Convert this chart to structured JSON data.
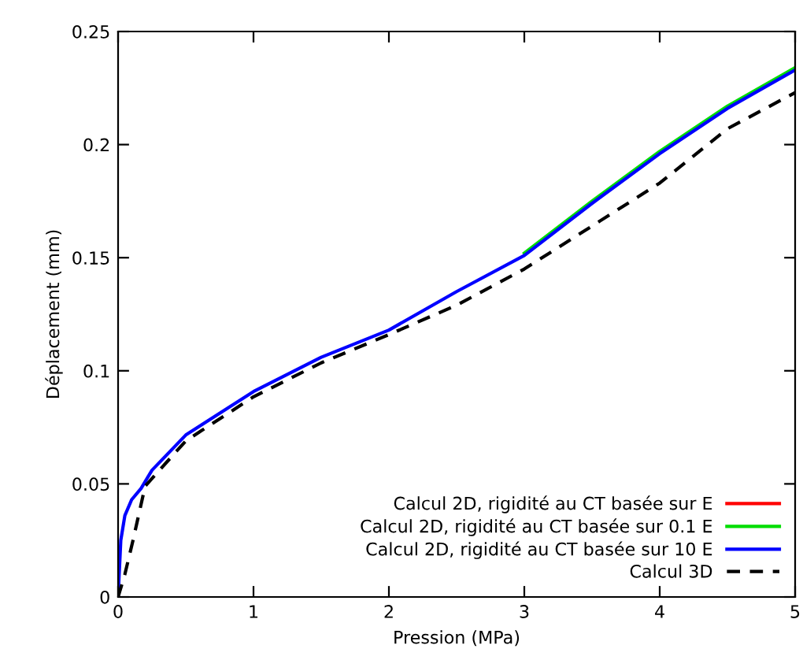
{
  "chart_data": {
    "type": "line",
    "xlabel": "Pression (MPa)",
    "ylabel": "Déplacement (mm)",
    "xlim": [
      0,
      5
    ],
    "ylim": [
      0,
      0.25
    ],
    "xticks": [
      0,
      1,
      2,
      3,
      4,
      5
    ],
    "yticks": [
      0,
      0.05,
      0.1,
      0.15,
      0.2,
      0.25
    ],
    "grid": false,
    "legend": "bottom right",
    "marker": "none",
    "series": [
      {
        "name": "Calcul 2D, rigidité au CT basée sur E",
        "color": "#ff0000",
        "line_style": "solid"
      },
      {
        "name": "Calcul 2D, rigidité au CT basée sur 0.1 E",
        "color": "#00dd00",
        "line_style": "solid",
        "x": [
          3,
          3.5,
          4,
          4.5,
          5
        ],
        "values": [
          0.152,
          0.175,
          0.197,
          0.217,
          0.234
        ]
      },
      {
        "name": "Calcul 2D, rigidité au CT basée sur 10 E",
        "color": "#0000ff",
        "line_style": "solid",
        "x": [
          0,
          0.02,
          0.05,
          0.1,
          0.17,
          0.25,
          0.5,
          1,
          1.5,
          2,
          2.5,
          3,
          3.5,
          4,
          4.5,
          5
        ],
        "values": [
          0,
          0.025,
          0.036,
          0.043,
          0.048,
          0.056,
          0.0716,
          0.0908,
          0.106,
          0.118,
          0.135,
          0.151,
          0.174,
          0.196,
          0.216,
          0.233
        ]
      },
      {
        "name": "Calcul 3D",
        "color": "#000000",
        "line_style": "dashed",
        "x": [
          0,
          0.05,
          0.11,
          0.2,
          0.5,
          1,
          1.5,
          2,
          2.5,
          3,
          3.5,
          4,
          4.5,
          5
        ],
        "values": [
          0,
          0.01,
          0.025,
          0.049,
          0.069,
          0.0885,
          0.1035,
          0.116,
          0.129,
          0.145,
          0.164,
          0.183,
          0.207,
          0.223
        ]
      }
    ]
  }
}
